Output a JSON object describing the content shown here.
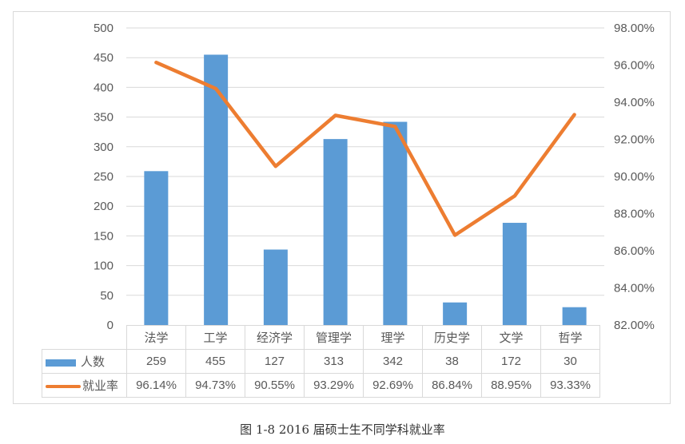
{
  "chart_data": {
    "type": "bar+line",
    "title": "",
    "caption": "图 1-8 2016 届硕士生不同学科就业率",
    "categories": [
      "法学",
      "工学",
      "经济学",
      "管理学",
      "理学",
      "历史学",
      "文学",
      "哲学"
    ],
    "series": [
      {
        "name": "人数",
        "type": "bar",
        "axis": "left",
        "color": "#5b9bd5",
        "values": [
          259,
          455,
          127,
          313,
          342,
          38,
          172,
          30
        ],
        "labels": [
          "259",
          "455",
          "127",
          "313",
          "342",
          "38",
          "172",
          "30"
        ]
      },
      {
        "name": "就业率",
        "type": "line",
        "axis": "right",
        "color": "#ed7d31",
        "values": [
          96.14,
          94.73,
          90.55,
          93.29,
          92.69,
          86.84,
          88.95,
          93.33
        ],
        "labels": [
          "96.14%",
          "94.73%",
          "90.55%",
          "93.29%",
          "92.69%",
          "86.84%",
          "88.95%",
          "93.33%"
        ]
      }
    ],
    "left_axis": {
      "ylim": [
        0,
        500
      ],
      "ticks": [
        "0",
        "50",
        "100",
        "150",
        "200",
        "250",
        "300",
        "350",
        "400",
        "450",
        "500"
      ]
    },
    "right_axis": {
      "ylim": [
        82,
        98
      ],
      "ticks": [
        "82.00%",
        "84.00%",
        "86.00%",
        "88.00%",
        "90.00%",
        "92.00%",
        "94.00%",
        "96.00%",
        "98.00%"
      ]
    },
    "grid": true,
    "legend_position": "data-table",
    "data_table": true
  },
  "legend": {
    "bar_label": "人数",
    "line_label": "就业率"
  },
  "caption": "图 1-8 2016 届硕士生不同学科就业率"
}
